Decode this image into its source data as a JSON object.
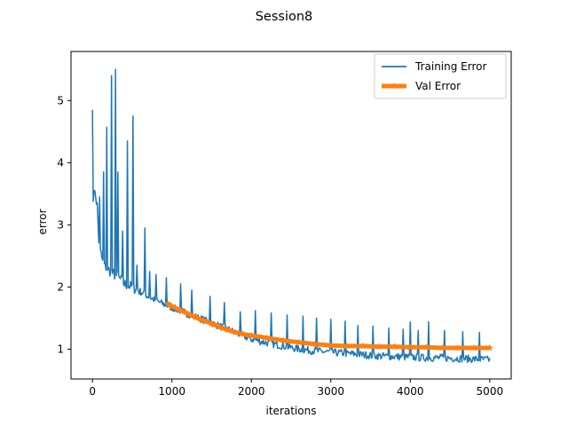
{
  "chart_data": {
    "type": "line",
    "title": "Session8",
    "xlabel": "iterations",
    "ylabel": "error",
    "xlim": [
      -270,
      5270
    ],
    "ylim": [
      0.52,
      5.79
    ],
    "xticks": [
      0,
      1000,
      2000,
      3000,
      4000,
      5000
    ],
    "yticks": [
      1,
      2,
      3,
      4,
      5
    ],
    "grid": false,
    "legend_position": "top-right",
    "series": [
      {
        "name": "Training Error",
        "color": "#1f77b4",
        "style": "noisy-line",
        "x": [
          0,
          10,
          20,
          40,
          60,
          80,
          100,
          130,
          160,
          200,
          250,
          300,
          350,
          400,
          500,
          600,
          700,
          800,
          900,
          1000,
          1100,
          1200,
          1300,
          1400,
          1500,
          1600,
          1700,
          1800,
          1900,
          2000,
          2200,
          2400,
          2600,
          2800,
          3000,
          3200,
          3400,
          3600,
          3800,
          4000,
          4200,
          4400,
          4600,
          4800,
          5000
        ],
        "values": [
          4.85,
          3.5,
          3.45,
          3.5,
          3.3,
          2.75,
          2.55,
          2.4,
          2.33,
          2.28,
          2.22,
          2.18,
          2.12,
          2.05,
          2.0,
          1.93,
          1.85,
          1.78,
          1.72,
          1.67,
          1.62,
          1.57,
          1.52,
          1.47,
          1.42,
          1.37,
          1.32,
          1.27,
          1.21,
          1.16,
          1.1,
          1.05,
          1.0,
          0.97,
          0.95,
          0.93,
          0.91,
          0.89,
          0.88,
          0.87,
          0.86,
          0.86,
          0.85,
          0.84,
          0.83
        ],
        "spikes": [
          {
            "x": 0,
            "value": 4.85
          },
          {
            "x": 30,
            "value": 3.55
          },
          {
            "x": 90,
            "value": 3.45
          },
          {
            "x": 140,
            "value": 3.85
          },
          {
            "x": 180,
            "value": 4.57
          },
          {
            "x": 240,
            "value": 5.4
          },
          {
            "x": 290,
            "value": 5.5
          },
          {
            "x": 320,
            "value": 3.85
          },
          {
            "x": 380,
            "value": 2.9
          },
          {
            "x": 440,
            "value": 4.35
          },
          {
            "x": 510,
            "value": 4.75
          },
          {
            "x": 560,
            "value": 2.35
          },
          {
            "x": 660,
            "value": 2.95
          },
          {
            "x": 720,
            "value": 2.25
          },
          {
            "x": 800,
            "value": 2.2
          },
          {
            "x": 930,
            "value": 2.15
          },
          {
            "x": 1110,
            "value": 2.05
          },
          {
            "x": 1250,
            "value": 1.95
          },
          {
            "x": 1480,
            "value": 1.85
          },
          {
            "x": 1660,
            "value": 1.75
          },
          {
            "x": 1860,
            "value": 1.6
          },
          {
            "x": 2050,
            "value": 1.62
          },
          {
            "x": 2250,
            "value": 1.58
          },
          {
            "x": 2450,
            "value": 1.55
          },
          {
            "x": 2650,
            "value": 1.53
          },
          {
            "x": 2820,
            "value": 1.5
          },
          {
            "x": 3000,
            "value": 1.48
          },
          {
            "x": 3180,
            "value": 1.45
          },
          {
            "x": 3340,
            "value": 1.38
          },
          {
            "x": 3530,
            "value": 1.37
          },
          {
            "x": 3730,
            "value": 1.34
          },
          {
            "x": 3910,
            "value": 1.32
          },
          {
            "x": 4000,
            "value": 1.44
          },
          {
            "x": 4100,
            "value": 1.3
          },
          {
            "x": 4230,
            "value": 1.44
          },
          {
            "x": 4430,
            "value": 1.3
          },
          {
            "x": 4660,
            "value": 1.28
          },
          {
            "x": 4870,
            "value": 1.27
          }
        ]
      },
      {
        "name": "Val Error",
        "color": "#ff7f0e",
        "style": "thick-line-star-markers",
        "x": [
          950,
          1000,
          1100,
          1200,
          1300,
          1400,
          1500,
          1600,
          1700,
          1800,
          1900,
          2000,
          2200,
          2400,
          2600,
          2800,
          3000,
          3200,
          3400,
          3600,
          3800,
          4000,
          4200,
          4400,
          4600,
          4800,
          5000
        ],
        "values": [
          1.73,
          1.69,
          1.63,
          1.57,
          1.51,
          1.46,
          1.41,
          1.36,
          1.31,
          1.27,
          1.24,
          1.22,
          1.18,
          1.14,
          1.11,
          1.08,
          1.06,
          1.05,
          1.05,
          1.04,
          1.04,
          1.03,
          1.03,
          1.02,
          1.02,
          1.02,
          1.02
        ]
      }
    ]
  }
}
